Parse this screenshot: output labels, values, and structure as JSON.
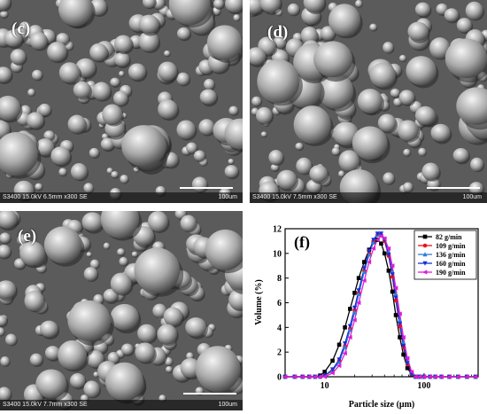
{
  "panels": [
    {
      "label": "(c)",
      "caption": "S3400 15.0kV 6.5mm x300 SE",
      "scale_text": "100um"
    },
    {
      "label": "(d)",
      "caption": "S3400 15.0kV 7.5mm x300 SE",
      "scale_text": "100um"
    },
    {
      "label": "(e)",
      "caption": "S3400 15.0kV 7.7mm x300 SE",
      "scale_text": "100um"
    }
  ],
  "chart_data": {
    "type": "line",
    "panel_label": "(f)",
    "xlabel": "Particle size (μm)",
    "ylabel": "Volume (%)",
    "x_scale": "log",
    "xlim": [
      4,
      350
    ],
    "ylim": [
      0,
      12
    ],
    "x_ticks": [
      10,
      100
    ],
    "y_ticks": [
      0,
      2,
      4,
      6,
      8,
      10,
      12
    ],
    "grid": false,
    "legend_position": "top-right",
    "x": [
      4,
      5,
      6,
      7,
      8,
      9,
      10,
      12,
      14,
      16,
      18,
      20,
      22,
      25,
      28,
      31,
      34,
      37,
      40,
      44,
      48,
      52,
      57,
      62,
      68,
      75,
      82,
      90,
      100,
      115,
      130,
      150,
      180,
      220,
      270,
      330
    ],
    "series": [
      {
        "name": "82 g/min",
        "color": "#000000",
        "marker": "square",
        "values": [
          0,
          0,
          0,
          0,
          0,
          0.1,
          0.4,
          1.3,
          2.6,
          4.0,
          5.5,
          6.8,
          8.0,
          9.3,
          10.3,
          10.9,
          11.1,
          10.8,
          10.0,
          8.6,
          6.9,
          5.0,
          3.2,
          1.8,
          0.7,
          0.2,
          0,
          0,
          0,
          0,
          0,
          0,
          0,
          0,
          0,
          0
        ]
      },
      {
        "name": "109 g/min",
        "color": "#e8141e",
        "marker": "circle",
        "values": [
          0,
          0,
          0,
          0,
          0,
          0,
          0.1,
          0.5,
          1.3,
          2.5,
          3.9,
          5.4,
          6.8,
          8.6,
          10.0,
          11.0,
          11.5,
          11.5,
          11.0,
          9.8,
          8.1,
          6.2,
          4.1,
          2.4,
          1.0,
          0.2,
          0,
          0,
          0,
          0,
          0,
          0,
          0,
          0,
          0,
          0
        ]
      },
      {
        "name": "136 g/min",
        "color": "#2e7fd6",
        "marker": "triangle-up",
        "values": [
          0,
          0,
          0,
          0,
          0,
          0,
          0.1,
          0.5,
          1.2,
          2.4,
          3.8,
          5.2,
          6.7,
          8.5,
          9.9,
          10.9,
          11.5,
          11.6,
          11.2,
          10.1,
          8.5,
          6.7,
          4.6,
          2.8,
          1.2,
          0.3,
          0,
          0,
          0,
          0,
          0,
          0,
          0,
          0,
          0,
          0
        ]
      },
      {
        "name": "160 g/min",
        "color": "#1a2fd6",
        "marker": "triangle-down",
        "values": [
          0,
          0,
          0,
          0,
          0,
          0,
          0.1,
          0.6,
          1.4,
          2.7,
          4.1,
          5.6,
          7.0,
          8.8,
          10.2,
          11.1,
          11.6,
          11.6,
          11.1,
          9.9,
          8.3,
          6.4,
          4.3,
          2.5,
          1.1,
          0.2,
          0,
          0,
          0,
          0,
          0,
          0,
          0,
          0,
          0,
          0
        ]
      },
      {
        "name": "190 g/min",
        "color": "#e01ad6",
        "marker": "triangle-left",
        "values": [
          0,
          0,
          0,
          0,
          0,
          0,
          0,
          0.3,
          0.9,
          1.9,
          3.2,
          4.6,
          6.0,
          7.8,
          9.3,
          10.4,
          11.1,
          11.4,
          11.2,
          10.4,
          9.0,
          7.2,
          5.1,
          3.2,
          1.5,
          0.4,
          0,
          0,
          0,
          0,
          0,
          0,
          0,
          0,
          0,
          0
        ]
      }
    ]
  }
}
